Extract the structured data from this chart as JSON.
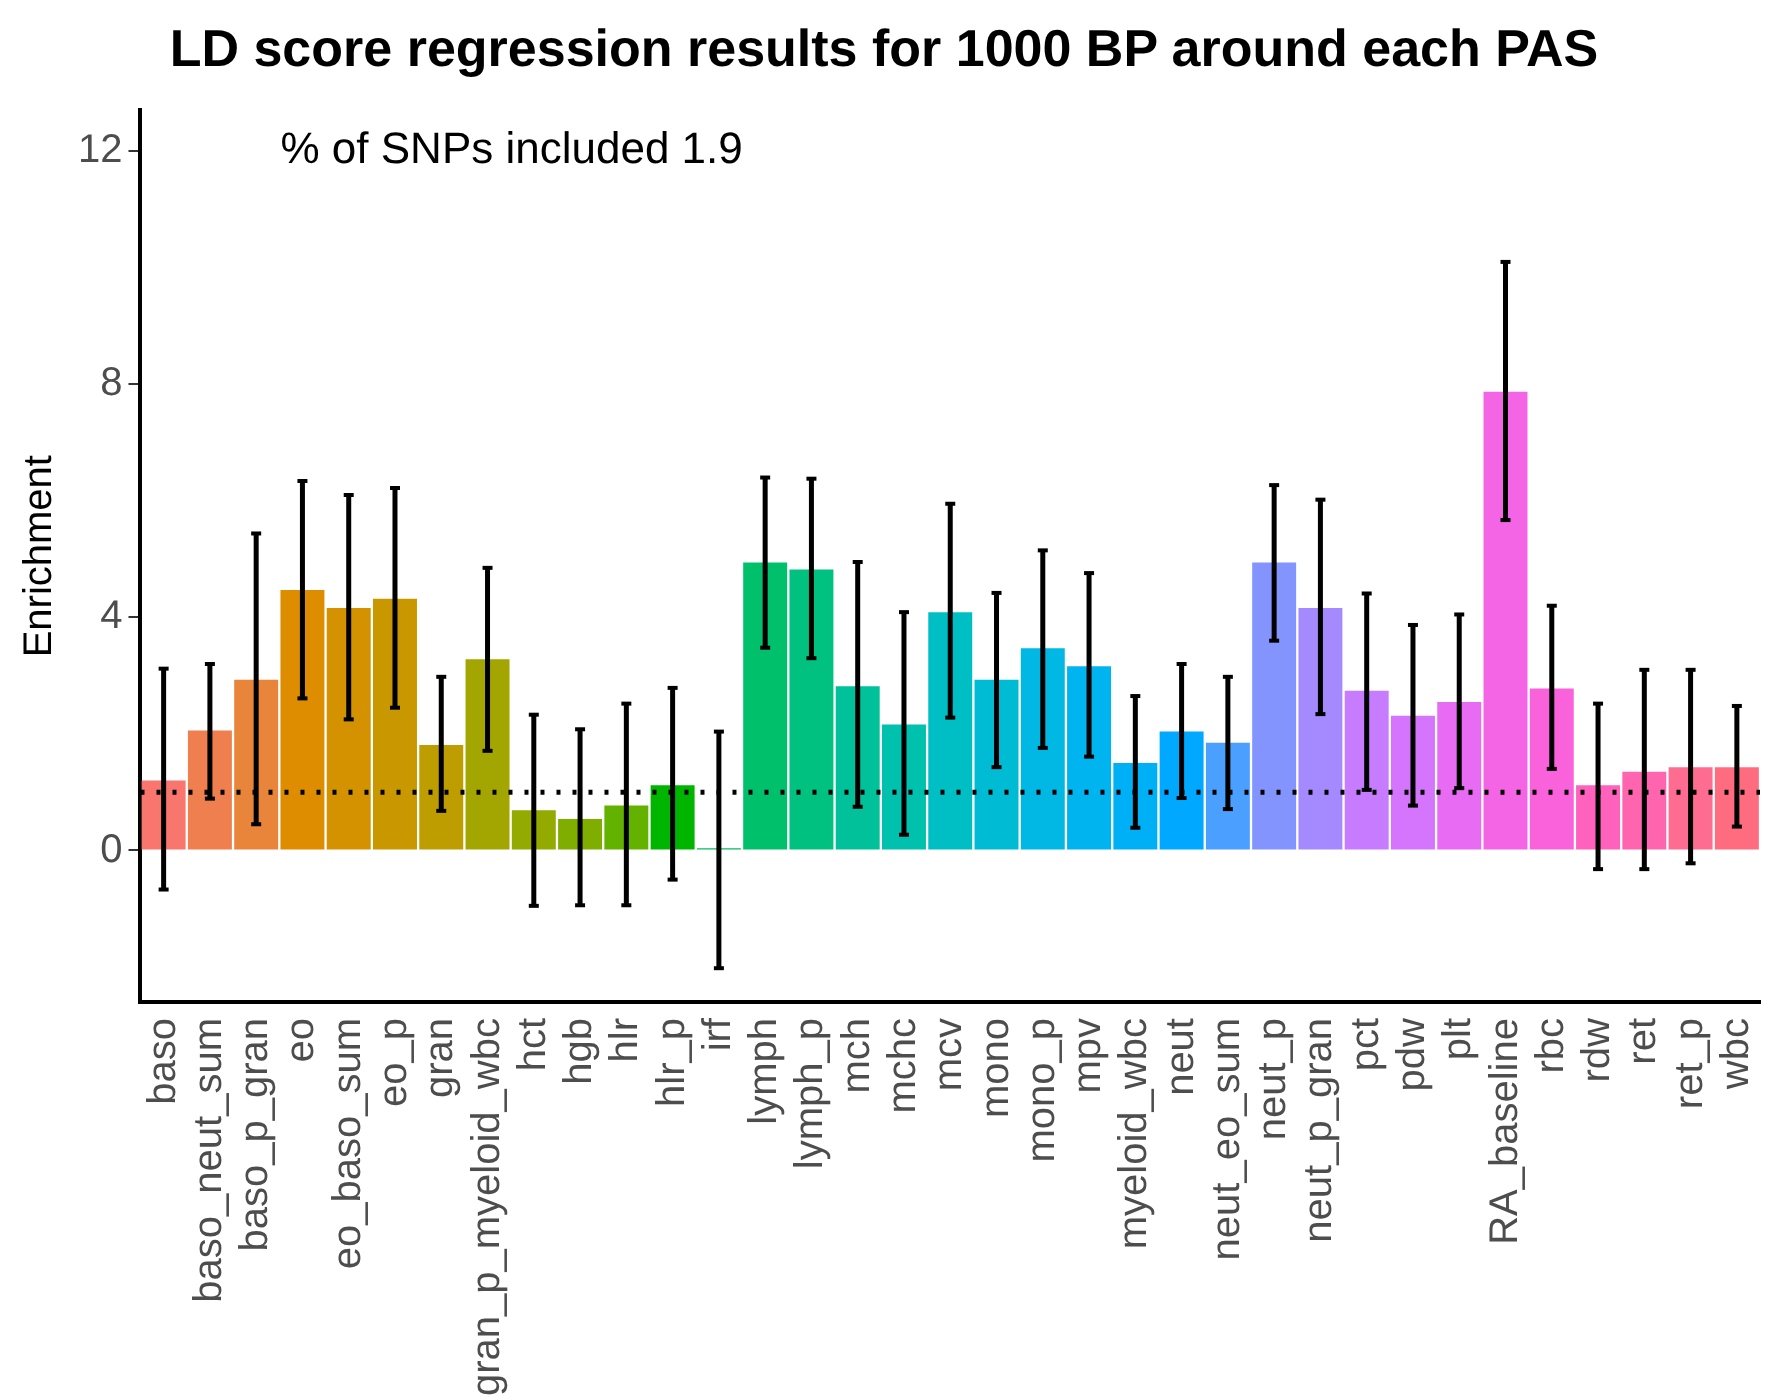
{
  "chart_data": {
    "type": "bar",
    "title": "LD score regression results for 1000 BP around each PAS",
    "ylabel": "Enrichment",
    "annotations": [
      "% of SNPs included 1.9"
    ],
    "categories": [
      "baso",
      "baso_neut_sum",
      "baso_p_gran",
      "eo",
      "eo_baso_sum",
      "eo_p",
      "gran",
      "gran_p_myeloid_wbc",
      "hct",
      "hgb",
      "hlr",
      "hlr_p",
      "irf",
      "lymph",
      "lymph_p",
      "mch",
      "mchc",
      "mcv",
      "mono",
      "mono_p",
      "mpv",
      "myeloid_wbc",
      "neut",
      "neut_eo_sum",
      "neut_p",
      "neut_p_gran",
      "pct",
      "pdw",
      "plt",
      "RA_baseline",
      "rbc",
      "rdw",
      "ret",
      "ret_p",
      "wbc"
    ],
    "values": [
      1.2,
      2.06,
      2.93,
      4.47,
      4.16,
      4.32,
      1.81,
      3.28,
      0.69,
      0.54,
      0.77,
      1.12,
      0.04,
      4.94,
      4.82,
      2.82,
      2.16,
      4.09,
      2.93,
      3.47,
      3.16,
      1.5,
      2.04,
      1.85,
      4.94,
      4.16,
      2.74,
      2.31,
      2.55,
      7.87,
      2.78,
      1.12,
      1.35,
      1.43,
      1.43
    ],
    "errors": [
      [
        -0.67,
        3.12
      ],
      [
        0.89,
        3.2
      ],
      [
        0.45,
        5.44
      ],
      [
        2.61,
        6.34
      ],
      [
        2.25,
        6.1
      ],
      [
        2.45,
        6.22
      ],
      [
        0.68,
        2.98
      ],
      [
        1.71,
        4.85
      ],
      [
        -0.95,
        2.33
      ],
      [
        -0.94,
        2.08
      ],
      [
        -0.94,
        2.52
      ],
      [
        -0.5,
        2.79
      ],
      [
        -2.02,
        2.04
      ],
      [
        3.48,
        6.4
      ],
      [
        3.3,
        6.38
      ],
      [
        0.75,
        4.95
      ],
      [
        0.27,
        4.09
      ],
      [
        2.28,
        5.95
      ],
      [
        1.43,
        4.42
      ],
      [
        1.76,
        5.15
      ],
      [
        1.61,
        4.76
      ],
      [
        0.39,
        2.65
      ],
      [
        0.9,
        3.2
      ],
      [
        0.71,
        2.98
      ],
      [
        3.6,
        6.27
      ],
      [
        2.34,
        6.02
      ],
      [
        1.04,
        4.41
      ],
      [
        0.77,
        3.87
      ],
      [
        1.07,
        4.05
      ],
      [
        5.67,
        10.1
      ],
      [
        1.4,
        4.2
      ],
      [
        -0.32,
        2.52
      ],
      [
        -0.32,
        3.1
      ],
      [
        -0.22,
        3.1
      ],
      [
        0.41,
        2.48
      ]
    ],
    "colors": [
      "#F8766D",
      "#F07F4F",
      "#E8853A",
      "#DE8C00",
      "#D49200",
      "#C99800",
      "#BD9D00",
      "#A3A500",
      "#93AA00",
      "#7FAE00",
      "#64B200",
      "#00B500",
      "#00BD5C",
      "#00C06B",
      "#00C17F",
      "#00C19A",
      "#00C0AE",
      "#00BFC4",
      "#00BBD4",
      "#00B8E3",
      "#00B4EF",
      "#00B0F6",
      "#00A9FF",
      "#4BA0FF",
      "#8494FF",
      "#A58AFF",
      "#C77CFF",
      "#D575FE",
      "#E76BF3",
      "#F365E5",
      "#FA62DB",
      "#FF62BC",
      "#FF65AE",
      "#FF6C91",
      "#FF6C80"
    ],
    "ylim": [
      -2.6,
      12.7
    ],
    "yticks": [
      0,
      4,
      8,
      12
    ],
    "ref_lines": [
      {
        "axis": "y",
        "value": 1,
        "line_style": "dotted",
        "color": "#000000"
      }
    ],
    "grid": false,
    "legend": false
  }
}
